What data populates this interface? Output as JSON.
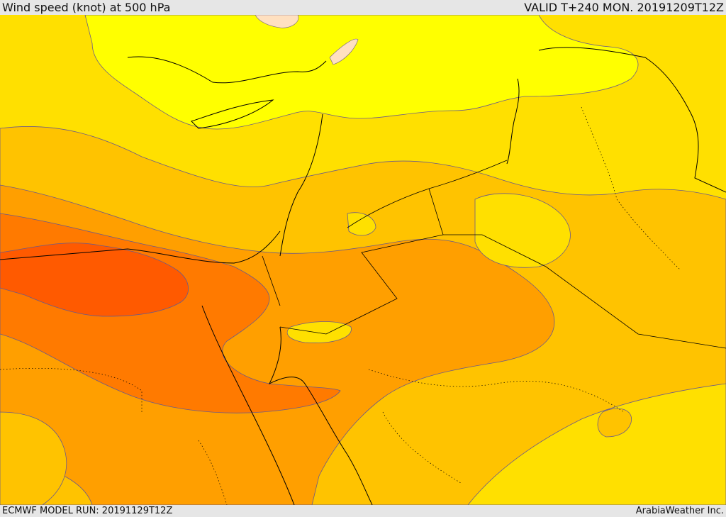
{
  "header": {
    "title": "Wind speed (knot) at 500 hPa",
    "valid": "VALID T+240 MON. 20191209T12Z"
  },
  "footer": {
    "model_run": "ECMWF MODEL RUN: 20191129T12Z",
    "credit": "ArabiaWeather Inc."
  },
  "colors": {
    "band_10": "#ffff00",
    "band_20": "#ffe000",
    "band_30": "#ffc300",
    "band_40": "#ff9f00",
    "band_50": "#ff7a00",
    "band_60": "#ff5a00",
    "band_pink": "#ffe0c0",
    "coast": "#000000",
    "contour": "#6a5a8a"
  }
}
